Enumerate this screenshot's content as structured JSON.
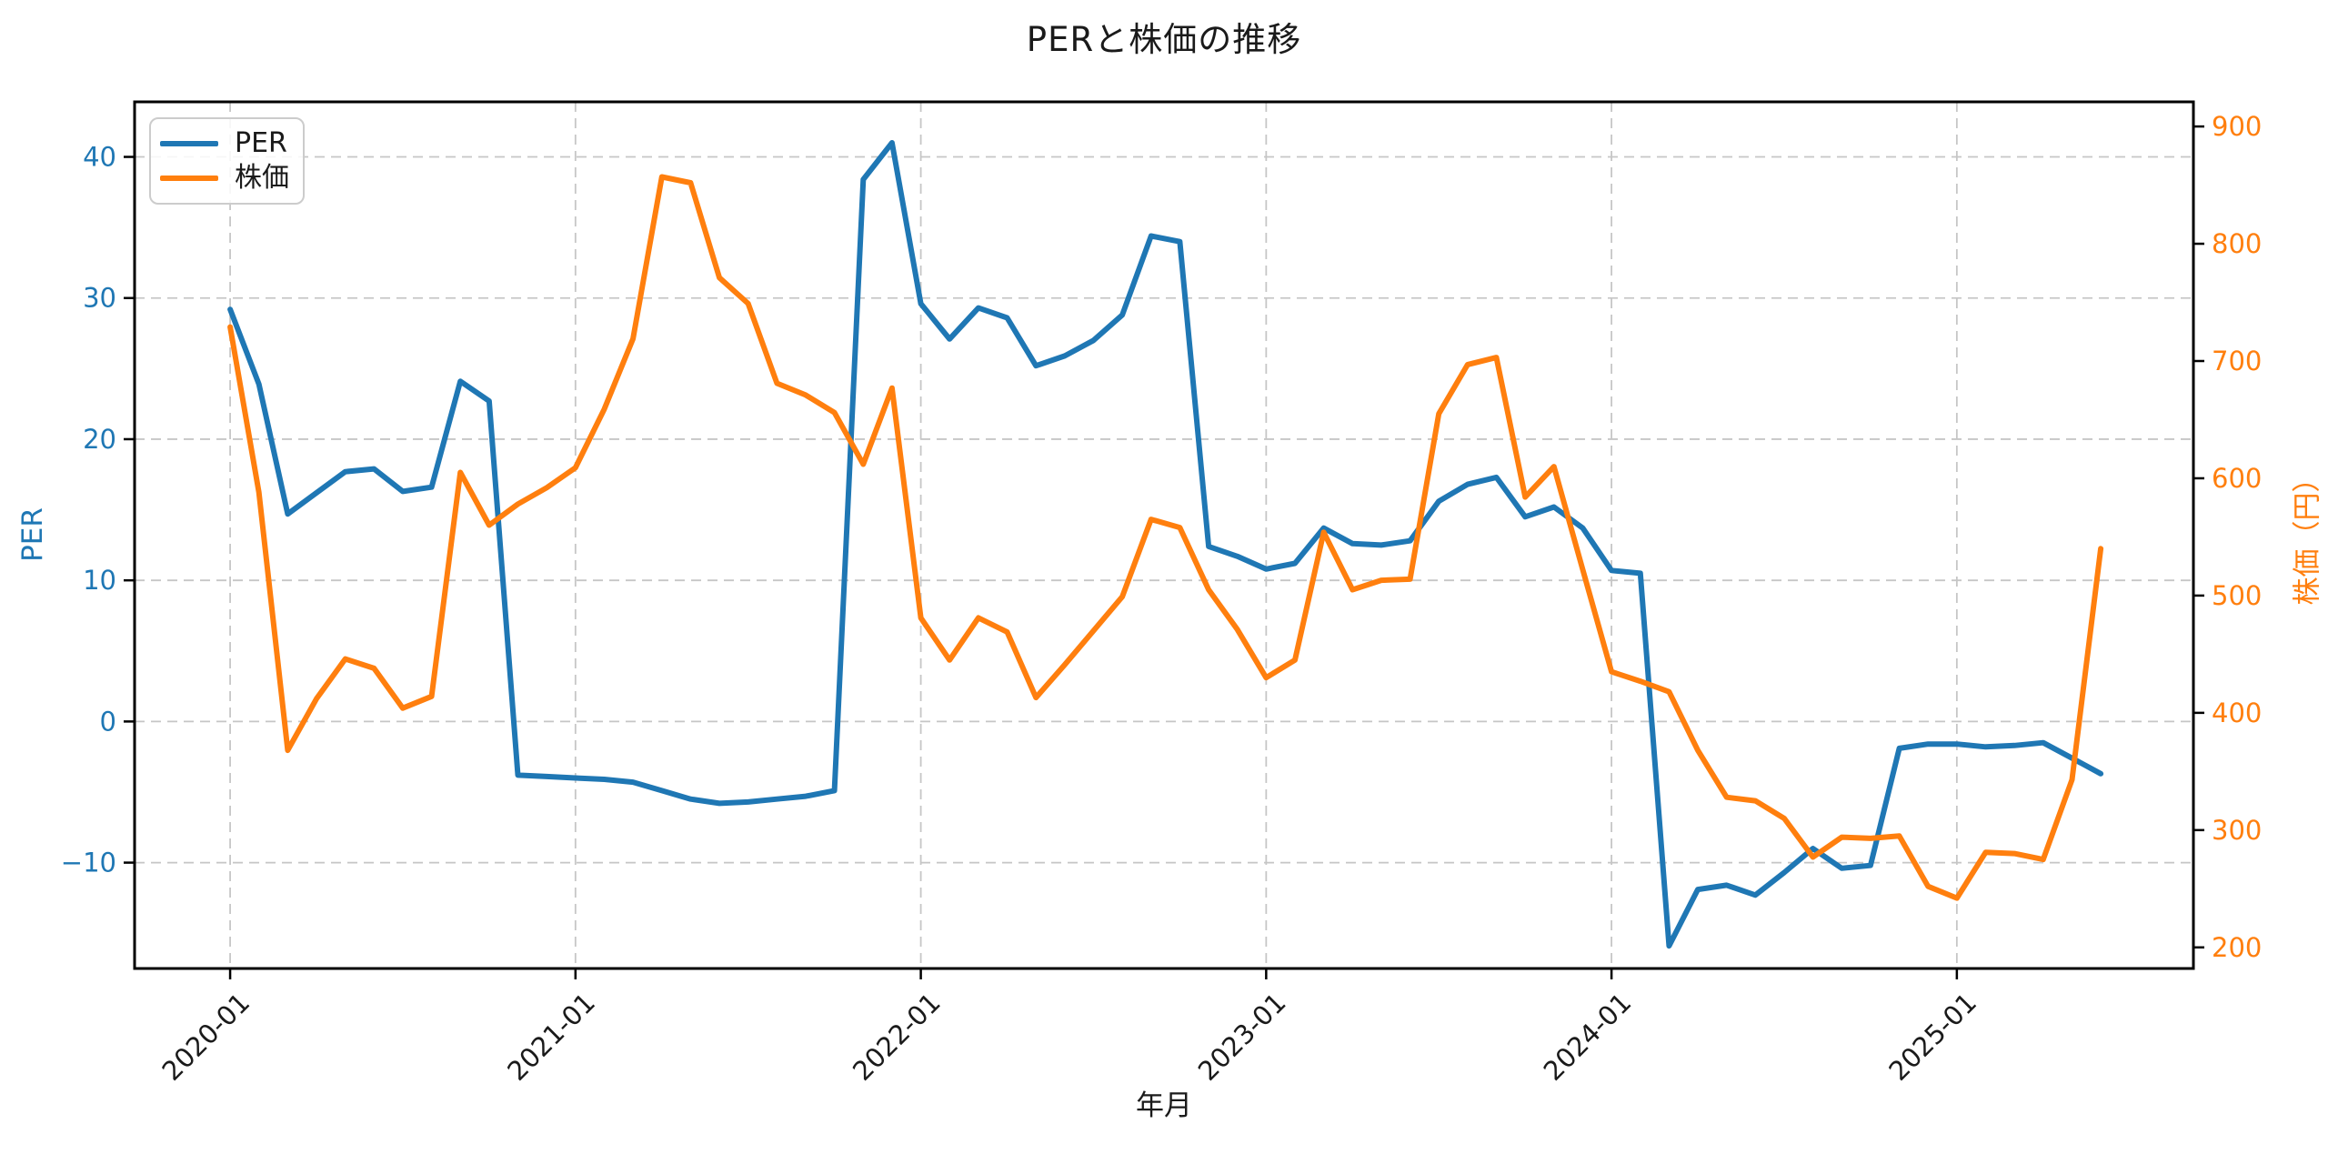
{
  "chart_data": {
    "type": "line",
    "title": "PERと株価の推移",
    "xlabel": "年月",
    "ylabel_left": "PER",
    "ylabel_right": "株価（円）",
    "grid": "dashed, on left-axis y-ticks and yearly x-ticks",
    "legend_position": "upper left",
    "colors": {
      "per": "#1f77b4",
      "price": "#ff7f0e",
      "grid": "#c6c6c6",
      "frame": "#000000"
    },
    "x": [
      "2020-01",
      "2020-02",
      "2020-03",
      "2020-04",
      "2020-05",
      "2020-06",
      "2020-07",
      "2020-08",
      "2020-09",
      "2020-10",
      "2020-11",
      "2020-12",
      "2021-01",
      "2021-02",
      "2021-03",
      "2021-04",
      "2021-05",
      "2021-06",
      "2021-07",
      "2021-08",
      "2021-09",
      "2021-10",
      "2021-11",
      "2021-12",
      "2022-01",
      "2022-02",
      "2022-03",
      "2022-04",
      "2022-05",
      "2022-06",
      "2022-07",
      "2022-08",
      "2022-09",
      "2022-10",
      "2022-11",
      "2022-12",
      "2023-01",
      "2023-02",
      "2023-03",
      "2023-04",
      "2023-05",
      "2023-06",
      "2023-07",
      "2023-08",
      "2023-09",
      "2023-10",
      "2023-11",
      "2023-12",
      "2024-01",
      "2024-02",
      "2024-03",
      "2024-04",
      "2024-05",
      "2024-06",
      "2024-07",
      "2024-08",
      "2024-09",
      "2024-10",
      "2024-11",
      "2024-12",
      "2025-01",
      "2025-02",
      "2025-03",
      "2025-04",
      "2025-05",
      "2025-06"
    ],
    "series": [
      {
        "name": "PER",
        "axis": "left",
        "color": "#1f77b4",
        "values": [
          29.2,
          23.9,
          14.7,
          16.2,
          17.7,
          17.9,
          16.3,
          16.6,
          24.1,
          22.7,
          -3.8,
          -3.9,
          -4.0,
          -4.1,
          -4.3,
          -4.9,
          -5.5,
          -5.8,
          -5.7,
          -5.5,
          -5.3,
          -4.9,
          38.4,
          41.0,
          29.6,
          27.1,
          29.3,
          28.6,
          25.2,
          25.9,
          27.0,
          28.8,
          34.4,
          34.0,
          12.4,
          11.7,
          10.8,
          11.2,
          13.7,
          12.6,
          12.5,
          12.8,
          15.6,
          16.8,
          17.3,
          14.5,
          15.2,
          13.7,
          10.7,
          10.5,
          -15.9,
          -11.9,
          -11.6,
          -12.3,
          -10.7,
          -9.0,
          -10.4,
          -10.2,
          -1.9,
          -1.6,
          -1.6,
          -1.8,
          -1.7,
          -1.5,
          -2.6,
          -3.7
        ]
      },
      {
        "name": "株価",
        "axis": "right",
        "color": "#ff7f0e",
        "values": [
          729,
          588,
          368,
          412,
          446,
          438,
          404,
          414,
          605,
          560,
          578,
          592,
          609,
          659,
          719,
          857,
          852,
          771,
          749,
          681,
          671,
          656,
          612,
          677,
          481,
          445,
          481,
          469,
          413,
          441,
          470,
          499,
          565,
          558,
          505,
          471,
          430,
          445,
          554,
          505,
          513,
          514,
          655,
          697,
          703,
          584,
          610,
          522,
          435,
          427,
          418,
          368,
          328,
          325,
          310,
          277,
          294,
          293,
          295,
          252,
          242,
          281,
          280,
          275,
          343,
          540
        ]
      }
    ],
    "left_axis": {
      "ticks": [
        40,
        30,
        20,
        10,
        0,
        -10
      ],
      "range": [
        -17.5,
        43.9
      ]
    },
    "right_axis": {
      "ticks": [
        900,
        800,
        700,
        600,
        500,
        400,
        300,
        200
      ],
      "range": [
        182,
        921
      ]
    },
    "x_ticks": {
      "indices": [
        0,
        12,
        24,
        36,
        48,
        60
      ],
      "labels": [
        "2020-01",
        "2021-01",
        "2022-01",
        "2023-01",
        "2024-01",
        "2025-01"
      ],
      "rotation_deg": -45
    },
    "x_range_months": [
      -3.32,
      68.22
    ]
  }
}
